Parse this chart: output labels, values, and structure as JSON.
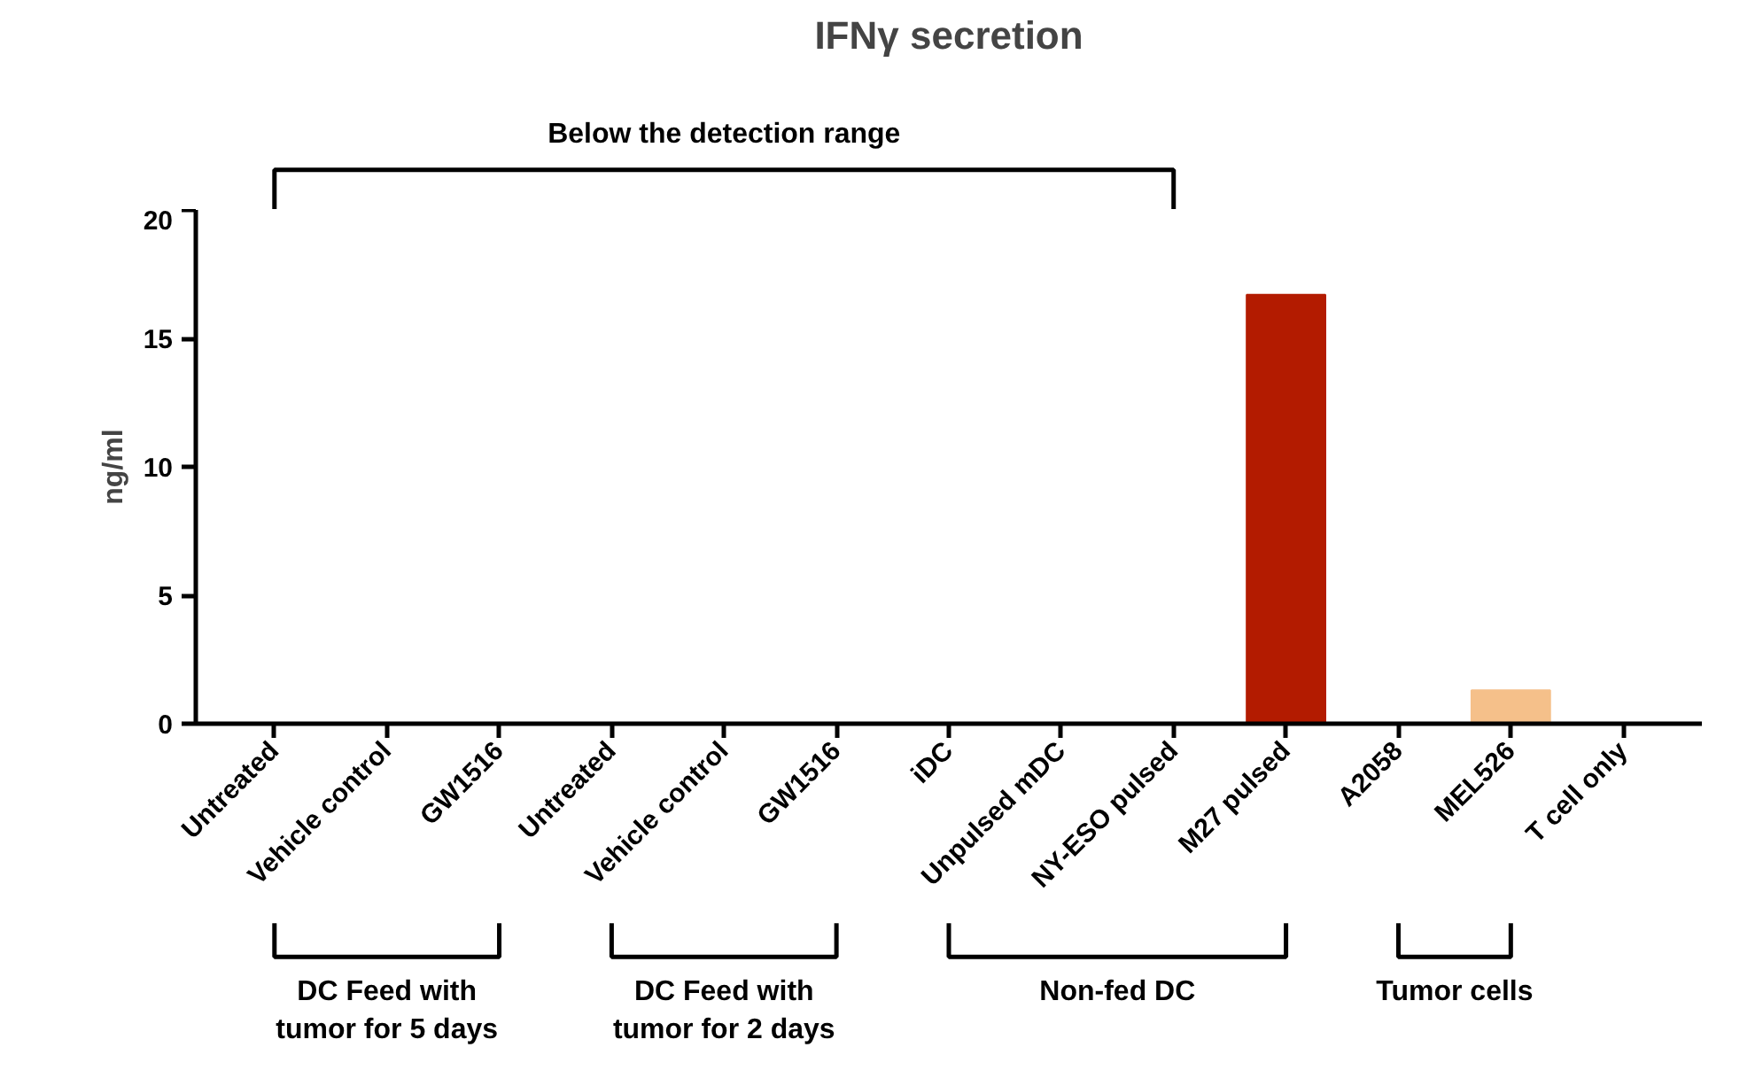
{
  "chart_data": {
    "type": "bar",
    "title": "IFNγ secretion",
    "ylabel": "ng/ml",
    "categories": [
      "Untreated",
      "Vehicle control",
      "GW1516",
      "Untreated",
      "Vehicle control",
      "GW1516",
      "iDC",
      "Unpulsed mDC",
      "NY-ESO pulsed",
      "M27 pulsed",
      "A2058",
      "MEL526",
      "T cell only"
    ],
    "values": [
      null,
      null,
      null,
      null,
      null,
      null,
      null,
      null,
      null,
      16.7,
      null,
      1.3,
      null
    ],
    "colors": [
      null,
      null,
      null,
      null,
      null,
      null,
      null,
      null,
      null,
      "#b31b00",
      null,
      "#f5c08a",
      null
    ],
    "ylim": [
      0,
      20
    ],
    "yticks": [
      0,
      5,
      10,
      15,
      20
    ],
    "grid": false,
    "annotations": [
      "Below the detection range",
      "DC Feed with\ntumor for 5 days",
      "DC Feed with\ntumor for 2 days",
      "Non-fed DC",
      "Tumor cells"
    ]
  }
}
